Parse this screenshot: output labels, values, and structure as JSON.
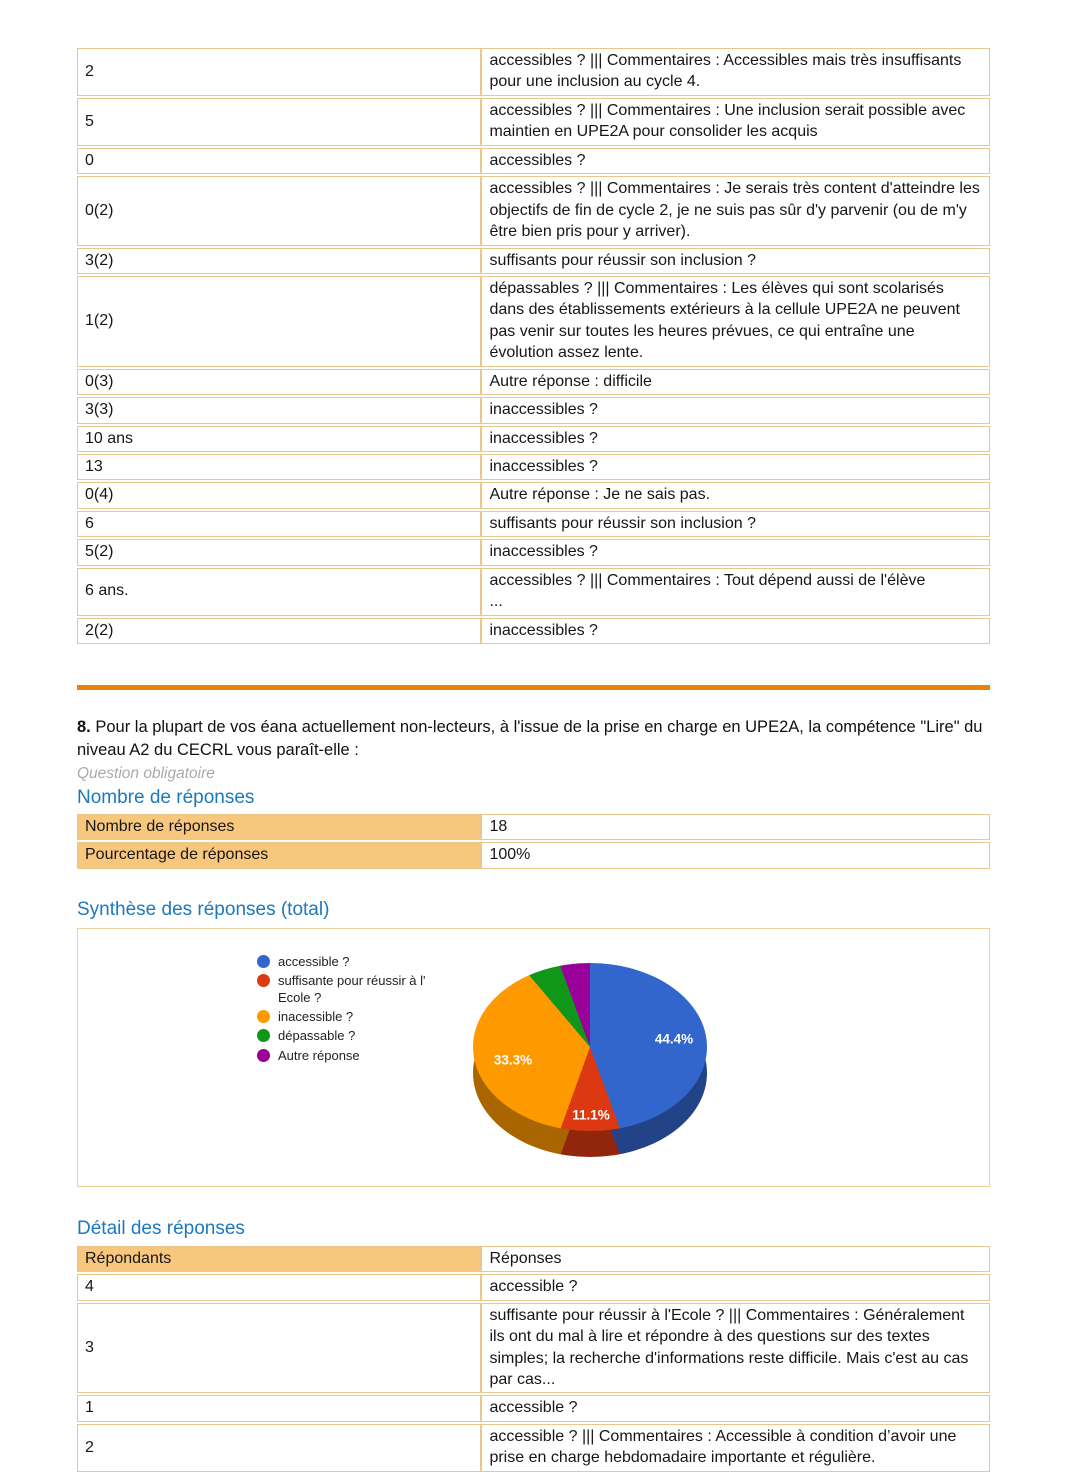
{
  "top_table": {
    "rows": [
      {
        "respondent": "2",
        "response": "accessibles ? ||| Commentaires : Accessibles mais très insuffisants pour une inclusion au cycle 4."
      },
      {
        "respondent": "5",
        "response": "accessibles ? ||| Commentaires : Une inclusion serait possible avec maintien en UPE2A pour consolider les acquis"
      },
      {
        "respondent": "0",
        "response": "accessibles ?"
      },
      {
        "respondent": "0(2)",
        "response": "accessibles ? ||| Commentaires : Je serais très content d'atteindre les objectifs de fin de cycle 2, je ne suis pas sûr d'y parvenir (ou de m'y être bien pris pour y arriver)."
      },
      {
        "respondent": "3(2)",
        "response": "suffisants pour réussir son inclusion ?"
      },
      {
        "respondent": "1(2)",
        "response": "dépassables ? ||| Commentaires : Les élèves qui sont scolarisés dans des établissements extérieurs à la cellule UPE2A ne peuvent pas venir sur toutes les heures prévues, ce qui entraîne une évolution assez lente."
      },
      {
        "respondent": "0(3)",
        "response": "Autre réponse : difficile"
      },
      {
        "respondent": "3(3)",
        "response": "inaccessibles ?"
      },
      {
        "respondent": "10 ans",
        "response": "inaccessibles ?"
      },
      {
        "respondent": "13",
        "response": "inaccessibles ?"
      },
      {
        "respondent": "0(4)",
        "response": "Autre réponse : Je ne sais pas."
      },
      {
        "respondent": "6",
        "response": "suffisants pour réussir son inclusion ?"
      },
      {
        "respondent": "5(2)",
        "response": "inaccessibles ?"
      },
      {
        "respondent": "6 ans.",
        "response": "accessibles ? ||| Commentaires : Tout dépend aussi de l'élève\n..."
      },
      {
        "respondent": "2(2)",
        "response": "inaccessibles ?"
      }
    ]
  },
  "question": {
    "number": "8.",
    "text": " Pour la plupart de vos éana actuellement non-lecteurs, à l'issue de la prise en charge en UPE2A, la compétence \"Lire\" du niveau A2 du CECRL vous paraît-elle :",
    "required_note": "Question obligatoire"
  },
  "counts": {
    "heading": "Nombre de réponses",
    "rows": [
      {
        "label": "Nombre de réponses",
        "value": "18"
      },
      {
        "label": "Pourcentage de réponses",
        "value": "100%"
      }
    ]
  },
  "synthesis_heading": "Synthèse des réponses (total)",
  "chart_data": {
    "type": "pie",
    "style": "3d",
    "title": "Synthèse des réponses (total)",
    "legend_position": "left",
    "series": [
      {
        "label": "accessible ?",
        "value_pct": 44.4,
        "color": "#3366CC"
      },
      {
        "label": "suffisante pour réussir à l' Ecole ?",
        "value_pct": 11.1,
        "color": "#DC3912"
      },
      {
        "label": "inacessible  ?",
        "value_pct": 33.3,
        "color": "#FF9900"
      },
      {
        "label": "dépassable ?",
        "value_pct": 5.6,
        "color": "#109618"
      },
      {
        "label": "Autre réponse",
        "value_pct": 5.6,
        "color": "#990099"
      }
    ],
    "visible_datalabels": [
      "44.4%",
      "33.3%",
      "11.1%"
    ]
  },
  "detail": {
    "heading": "Détail des réponses",
    "columns": [
      "Répondants",
      "Réponses"
    ],
    "rows": [
      {
        "respondent": "4",
        "response": "accessible ?"
      },
      {
        "respondent": "3",
        "response": "suffisante pour réussir à l'Ecole ? ||| Commentaires : Généralement ils ont du mal à lire et répondre à des questions sur des textes simples; la recherche d'informations reste difficile. Mais c'est au cas par cas..."
      },
      {
        "respondent": "1",
        "response": "accessible ?"
      },
      {
        "respondent": "2",
        "response": "accessible ? ||| Commentaires : Accessible à condition d’avoir une prise en charge hebdomadaire importante et régulière."
      }
    ]
  },
  "colors": {
    "heading_blue": "#1B79BE",
    "divider_orange": "#E8820C",
    "cell_orange": "#F8C77E",
    "table_border": "#EAC88C"
  }
}
